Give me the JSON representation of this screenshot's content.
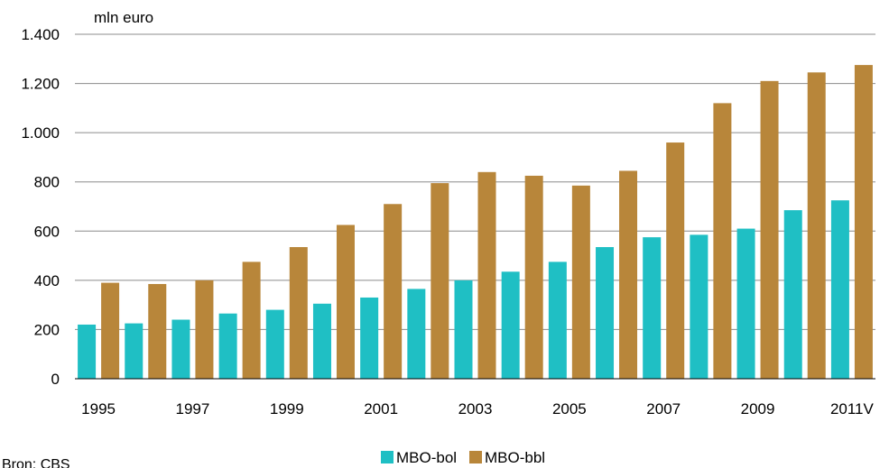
{
  "chart_data": {
    "type": "bar",
    "unit_label": "mln euro",
    "source": "Bron: CBS",
    "categories": [
      "1995",
      "1996",
      "1997",
      "1998",
      "1999",
      "2000",
      "2001",
      "2002",
      "2003",
      "2004",
      "2005",
      "2006",
      "2007",
      "2008",
      "2009",
      "2010",
      "2011V"
    ],
    "x_tick_labels": [
      "1995",
      "",
      "1997",
      "",
      "1999",
      "",
      "2001",
      "",
      "2003",
      "",
      "2005",
      "",
      "2007",
      "",
      "2009",
      "",
      "2011V"
    ],
    "ylim": [
      0,
      1400
    ],
    "y_ticks": [
      0,
      200,
      400,
      600,
      800,
      1000,
      1200,
      1400
    ],
    "y_tick_labels": [
      "0",
      "200",
      "400",
      "600",
      "800",
      "1.000",
      "1.200",
      "1.400"
    ],
    "grid": "horizontal",
    "legend_position": "bottom",
    "series": [
      {
        "name": "MBO-bol",
        "color": "#1fbfc4",
        "values": [
          220,
          225,
          240,
          265,
          280,
          305,
          330,
          365,
          400,
          435,
          475,
          535,
          575,
          585,
          610,
          685,
          725
        ]
      },
      {
        "name": "MBO-bbl",
        "color": "#b8863a",
        "values": [
          390,
          385,
          400,
          475,
          535,
          625,
          710,
          795,
          840,
          825,
          785,
          845,
          960,
          1120,
          1210,
          1245,
          1275
        ]
      }
    ]
  }
}
